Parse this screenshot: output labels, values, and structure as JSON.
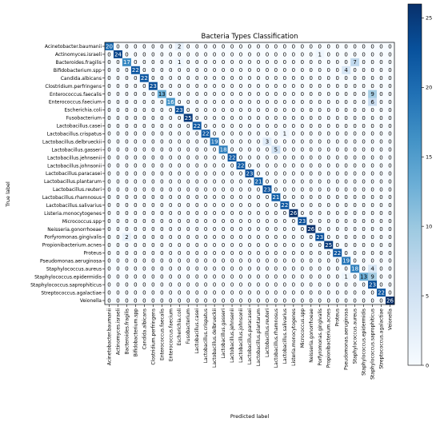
{
  "chart_data": {
    "type": "heatmap",
    "title": "Bacteria Types Classification",
    "xlabel": "Predicted label",
    "ylabel": "True label",
    "labels": [
      "Acinetobacter.baumanii",
      "Actinomyces.israeli",
      "Bacteroides.fragilis",
      "Bifidobacterium.spp",
      "Candida.albicans",
      "Clostridium.perfringens",
      "Enterococcus.faecalis",
      "Enterococcus.faecium",
      "Escherichia.coli",
      "Fusobacterium",
      "Lactobacillus.casei",
      "Lactobacillus.crispatus",
      "Lactobacillus.delbrueckii",
      "Lactobacillus.gasseri",
      "Lactobacillus.jehnsenii",
      "Lactobacillus.johnsonii",
      "Lactobacillus.paracasei",
      "Lactobacillus.plantarum",
      "Lactobacillus.reuteri",
      "Lactobacillus.rhamnosus",
      "Lactobacillus.salivarius",
      "Listeria.monocytogenes",
      "Micrococcus.spp",
      "Neisseria.gonorrhoeae",
      "Porfyromonas.gingivalis",
      "Propionibacterium.acnes",
      "Proteus",
      "Pseudomonas.aeruginosa",
      "Staphylococcus.aureus",
      "Staphylococcus.epidermidis",
      "Staphylococcus.saprophiticus",
      "Streptococcus.agalactiae",
      "Veionella"
    ],
    "matrix": [
      [
        20,
        0,
        0,
        0,
        0,
        0,
        0,
        0,
        2,
        0,
        0,
        0,
        0,
        0,
        0,
        0,
        0,
        0,
        0,
        0,
        0,
        0,
        0,
        0,
        0,
        0,
        0,
        0,
        0,
        0,
        0,
        0,
        0
      ],
      [
        0,
        24,
        0,
        0,
        0,
        0,
        0,
        0,
        0,
        0,
        0,
        0,
        0,
        0,
        0,
        0,
        0,
        0,
        0,
        0,
        0,
        0,
        0,
        0,
        1,
        0,
        0,
        0,
        0,
        0,
        0,
        0,
        0
      ],
      [
        0,
        0,
        17,
        0,
        0,
        0,
        0,
        0,
        1,
        0,
        0,
        0,
        0,
        0,
        0,
        0,
        0,
        0,
        0,
        0,
        0,
        0,
        0,
        0,
        0,
        0,
        0,
        0,
        7,
        0,
        0,
        0,
        0
      ],
      [
        0,
        0,
        0,
        22,
        0,
        0,
        0,
        0,
        0,
        0,
        0,
        0,
        0,
        0,
        0,
        0,
        0,
        0,
        0,
        0,
        0,
        0,
        0,
        0,
        0,
        0,
        0,
        4,
        0,
        0,
        0,
        0,
        0
      ],
      [
        0,
        0,
        0,
        0,
        22,
        0,
        0,
        0,
        0,
        0,
        0,
        0,
        0,
        0,
        0,
        0,
        0,
        0,
        0,
        0,
        0,
        0,
        0,
        0,
        0,
        0,
        0,
        0,
        0,
        0,
        0,
        0,
        0
      ],
      [
        0,
        0,
        0,
        0,
        0,
        23,
        0,
        0,
        0,
        0,
        0,
        0,
        0,
        0,
        0,
        0,
        0,
        0,
        0,
        0,
        0,
        0,
        0,
        0,
        0,
        0,
        0,
        0,
        0,
        0,
        0,
        0,
        0
      ],
      [
        0,
        0,
        0,
        0,
        0,
        0,
        13,
        0,
        0,
        0,
        0,
        0,
        0,
        0,
        0,
        0,
        0,
        0,
        0,
        0,
        0,
        0,
        0,
        0,
        0,
        0,
        0,
        0,
        0,
        0,
        9,
        0,
        0
      ],
      [
        0,
        0,
        0,
        0,
        0,
        0,
        0,
        16,
        0,
        0,
        0,
        0,
        0,
        0,
        0,
        0,
        0,
        0,
        0,
        0,
        0,
        0,
        0,
        0,
        0,
        0,
        0,
        0,
        0,
        0,
        6,
        0,
        0
      ],
      [
        0,
        0,
        0,
        0,
        0,
        0,
        0,
        0,
        23,
        0,
        0,
        0,
        0,
        0,
        0,
        0,
        0,
        0,
        0,
        0,
        0,
        0,
        0,
        0,
        0,
        0,
        0,
        0,
        0,
        0,
        0,
        0,
        0
      ],
      [
        0,
        0,
        0,
        0,
        0,
        0,
        0,
        0,
        0,
        25,
        0,
        0,
        0,
        0,
        0,
        0,
        0,
        0,
        0,
        0,
        0,
        0,
        0,
        0,
        0,
        0,
        0,
        0,
        0,
        0,
        0,
        0,
        0
      ],
      [
        0,
        0,
        0,
        0,
        0,
        0,
        0,
        0,
        0,
        0,
        22,
        0,
        0,
        0,
        0,
        0,
        0,
        0,
        0,
        0,
        0,
        0,
        0,
        0,
        0,
        0,
        0,
        0,
        0,
        0,
        0,
        0,
        0
      ],
      [
        0,
        0,
        0,
        0,
        0,
        0,
        0,
        0,
        0,
        0,
        0,
        22,
        0,
        0,
        0,
        0,
        0,
        0,
        0,
        0,
        1,
        0,
        0,
        0,
        0,
        0,
        0,
        0,
        0,
        0,
        0,
        0,
        0
      ],
      [
        0,
        0,
        0,
        0,
        0,
        0,
        0,
        0,
        0,
        0,
        0,
        0,
        19,
        0,
        0,
        0,
        0,
        0,
        3,
        0,
        0,
        0,
        0,
        0,
        0,
        0,
        0,
        0,
        0,
        0,
        0,
        0,
        0
      ],
      [
        0,
        0,
        0,
        0,
        0,
        0,
        0,
        0,
        0,
        0,
        0,
        0,
        0,
        18,
        0,
        0,
        0,
        0,
        0,
        5,
        0,
        0,
        0,
        0,
        0,
        0,
        0,
        0,
        0,
        0,
        0,
        0,
        0
      ],
      [
        0,
        0,
        0,
        0,
        0,
        0,
        0,
        0,
        0,
        0,
        0,
        0,
        0,
        0,
        22,
        0,
        0,
        0,
        0,
        0,
        0,
        0,
        0,
        0,
        0,
        0,
        0,
        0,
        0,
        0,
        0,
        0,
        0
      ],
      [
        0,
        0,
        0,
        0,
        0,
        0,
        0,
        0,
        0,
        0,
        0,
        0,
        0,
        0,
        0,
        22,
        0,
        0,
        0,
        0,
        0,
        0,
        0,
        0,
        0,
        0,
        0,
        0,
        0,
        0,
        0,
        0,
        0
      ],
      [
        0,
        0,
        0,
        0,
        0,
        0,
        0,
        0,
        0,
        0,
        0,
        0,
        0,
        0,
        0,
        0,
        23,
        0,
        0,
        0,
        0,
        0,
        0,
        0,
        0,
        0,
        0,
        0,
        0,
        0,
        0,
        0,
        0
      ],
      [
        0,
        0,
        0,
        0,
        0,
        0,
        0,
        0,
        0,
        0,
        0,
        0,
        0,
        0,
        0,
        0,
        0,
        21,
        0,
        0,
        0,
        0,
        0,
        0,
        0,
        0,
        0,
        0,
        0,
        0,
        0,
        0,
        0
      ],
      [
        0,
        0,
        0,
        0,
        0,
        0,
        0,
        0,
        0,
        0,
        0,
        0,
        0,
        0,
        0,
        0,
        0,
        0,
        23,
        0,
        0,
        0,
        0,
        0,
        0,
        0,
        0,
        0,
        0,
        0,
        0,
        0,
        0
      ],
      [
        0,
        0,
        0,
        0,
        0,
        0,
        0,
        0,
        0,
        0,
        0,
        0,
        0,
        0,
        0,
        0,
        0,
        0,
        0,
        21,
        0,
        0,
        0,
        0,
        0,
        0,
        0,
        0,
        0,
        0,
        0,
        0,
        0
      ],
      [
        0,
        0,
        0,
        0,
        0,
        0,
        0,
        0,
        0,
        0,
        0,
        0,
        0,
        0,
        0,
        0,
        0,
        0,
        0,
        0,
        22,
        0,
        0,
        0,
        0,
        0,
        0,
        0,
        0,
        0,
        0,
        0,
        0
      ],
      [
        0,
        0,
        0,
        0,
        0,
        0,
        0,
        0,
        0,
        0,
        0,
        0,
        0,
        0,
        0,
        0,
        0,
        0,
        0,
        0,
        0,
        26,
        0,
        0,
        0,
        0,
        0,
        0,
        0,
        0,
        0,
        0,
        0
      ],
      [
        0,
        0,
        0,
        0,
        0,
        0,
        0,
        0,
        0,
        0,
        0,
        0,
        0,
        0,
        0,
        0,
        0,
        0,
        0,
        0,
        0,
        0,
        23,
        0,
        0,
        0,
        0,
        0,
        0,
        0,
        0,
        0,
        0
      ],
      [
        0,
        0,
        0,
        0,
        0,
        0,
        0,
        0,
        0,
        0,
        0,
        0,
        0,
        0,
        0,
        0,
        0,
        0,
        0,
        0,
        0,
        0,
        0,
        26,
        0,
        0,
        0,
        0,
        0,
        0,
        0,
        0,
        0
      ],
      [
        0,
        0,
        2,
        0,
        0,
        0,
        0,
        0,
        0,
        0,
        0,
        0,
        0,
        0,
        0,
        0,
        0,
        0,
        0,
        0,
        0,
        0,
        0,
        0,
        23,
        0,
        0,
        0,
        0,
        0,
        0,
        0,
        0
      ],
      [
        0,
        0,
        0,
        0,
        0,
        0,
        0,
        0,
        0,
        0,
        0,
        0,
        0,
        0,
        0,
        0,
        0,
        0,
        0,
        0,
        0,
        0,
        0,
        0,
        0,
        25,
        0,
        0,
        0,
        0,
        0,
        0,
        0
      ],
      [
        0,
        0,
        0,
        0,
        0,
        0,
        0,
        0,
        0,
        0,
        0,
        0,
        0,
        0,
        0,
        0,
        0,
        0,
        0,
        0,
        0,
        0,
        0,
        0,
        0,
        0,
        22,
        0,
        0,
        0,
        0,
        0,
        0
      ],
      [
        0,
        0,
        0,
        0,
        0,
        0,
        0,
        0,
        0,
        0,
        0,
        0,
        0,
        0,
        0,
        0,
        0,
        0,
        0,
        0,
        0,
        0,
        0,
        0,
        0,
        0,
        0,
        19,
        0,
        0,
        0,
        0,
        0
      ],
      [
        0,
        0,
        0,
        0,
        0,
        0,
        0,
        0,
        0,
        0,
        0,
        0,
        0,
        0,
        0,
        0,
        0,
        0,
        0,
        0,
        0,
        0,
        0,
        0,
        0,
        0,
        0,
        0,
        18,
        0,
        4,
        0,
        0
      ],
      [
        0,
        0,
        0,
        0,
        0,
        0,
        0,
        0,
        0,
        0,
        0,
        0,
        0,
        0,
        0,
        0,
        0,
        0,
        0,
        0,
        0,
        0,
        0,
        0,
        0,
        0,
        0,
        1,
        0,
        13,
        9,
        0,
        0
      ],
      [
        0,
        0,
        0,
        0,
        0,
        0,
        0,
        0,
        0,
        0,
        0,
        0,
        0,
        0,
        0,
        0,
        0,
        0,
        0,
        0,
        0,
        0,
        0,
        0,
        0,
        0,
        0,
        0,
        0,
        0,
        23,
        0,
        0
      ],
      [
        0,
        0,
        0,
        0,
        0,
        0,
        0,
        0,
        0,
        0,
        0,
        0,
        0,
        0,
        0,
        0,
        0,
        0,
        0,
        0,
        0,
        0,
        0,
        0,
        0,
        0,
        0,
        0,
        0,
        0,
        0,
        22,
        0
      ],
      [
        0,
        0,
        0,
        0,
        0,
        0,
        0,
        0,
        0,
        0,
        0,
        0,
        0,
        0,
        0,
        0,
        0,
        0,
        0,
        0,
        0,
        0,
        0,
        0,
        0,
        0,
        0,
        0,
        0,
        0,
        0,
        0,
        26
      ]
    ],
    "colorbar": {
      "min": 0,
      "max": 26,
      "ticks": [
        0,
        5,
        10,
        15,
        20,
        25
      ],
      "colormap": "Blues"
    },
    "text_color_dark": "#000000",
    "text_color_light": "#ffffff"
  }
}
